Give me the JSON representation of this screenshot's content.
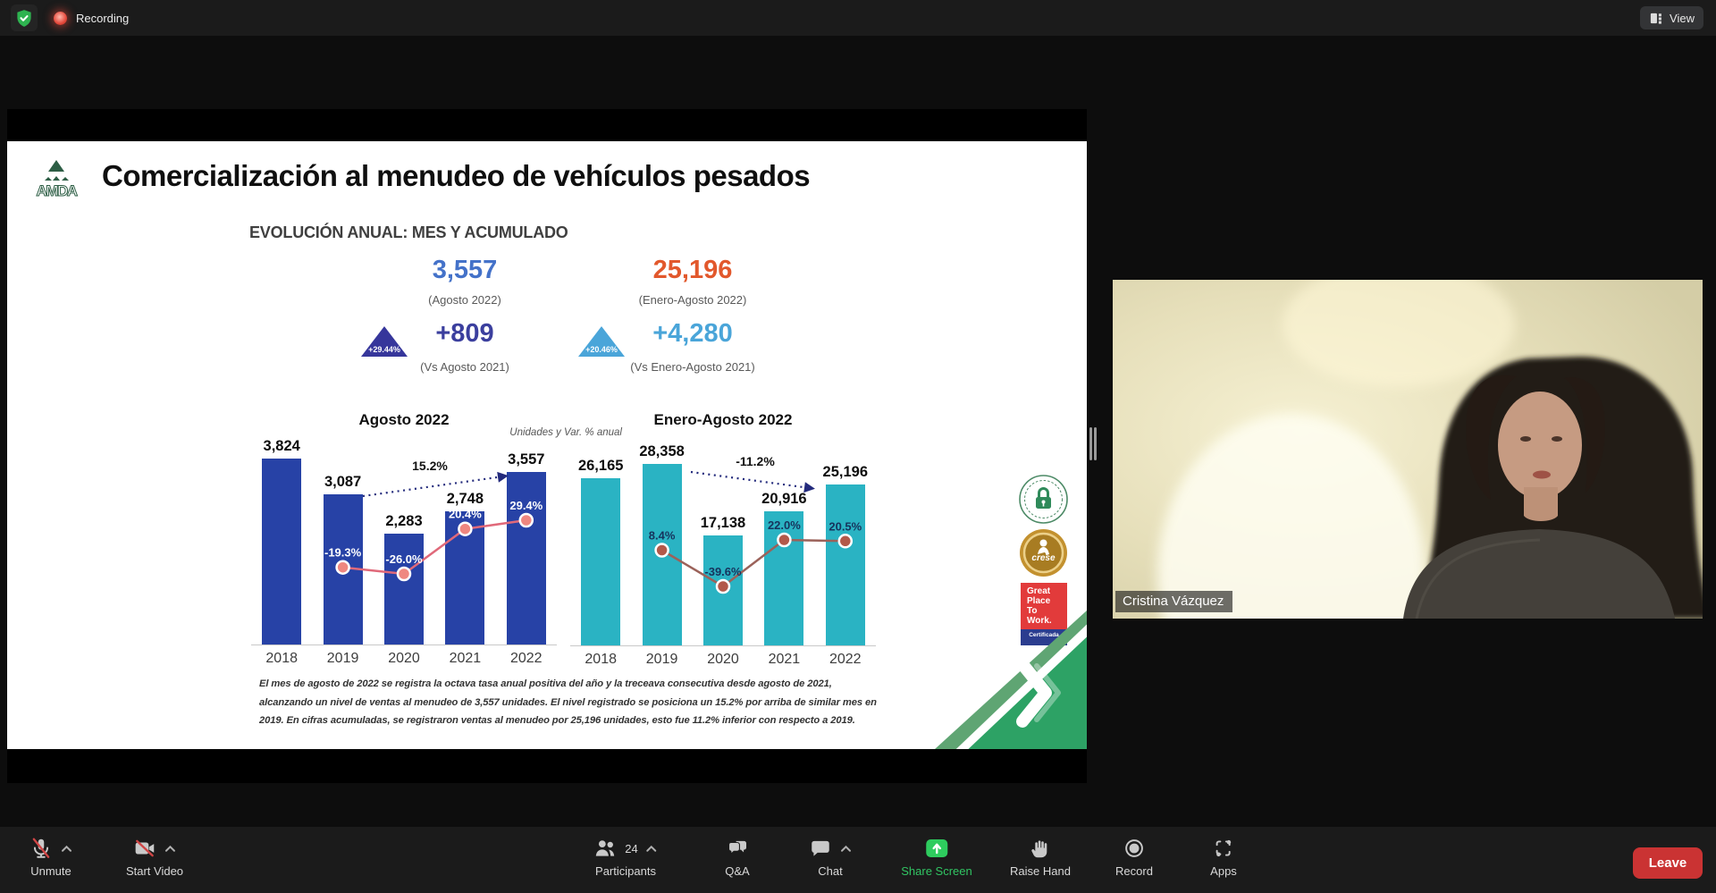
{
  "topbar": {
    "recording_label": "Recording",
    "view_label": "View"
  },
  "slide": {
    "logo_text": "AMDA",
    "title": "Comercialización al menudeo de vehículos pesados",
    "section_title": "EVOLUCIÓN ANUAL: MES Y ACUMULADO",
    "kpis": {
      "month_value": "3,557",
      "month_caption": "(Agosto 2022)",
      "month_delta": "+809",
      "month_delta_caption": "(Vs Agosto 2021)",
      "month_delta_pct": "+29.44%",
      "accum_value": "25,196",
      "accum_caption": "(Enero-Agosto 2022)",
      "accum_delta": "+4,280",
      "accum_delta_caption": "(Vs Enero-Agosto 2021)",
      "accum_delta_pct": "+20.46%"
    },
    "units_note": "Unidades y Var. % anual",
    "footnote": "El mes de agosto de 2022 se registra la octava tasa anual positiva del año y la treceava consecutiva desde agosto de 2021, alcanzando un nivel de ventas al menudeo de 3,557 unidades. El nivel registrado se posiciona un 15.2% por arriba de similar mes en 2019. En cifras acumuladas, se registraron ventas al menudeo por 25,196 unidades, esto fue 11.2% inferior con respecto a 2019.",
    "badges": {
      "gptw_lines": [
        "Great",
        "Place",
        "To",
        "Work."
      ],
      "gptw_cert": "Certificada",
      "crese": "crese"
    }
  },
  "chart_data": [
    {
      "type": "bar",
      "title": "Agosto 2022",
      "categories": [
        "2018",
        "2019",
        "2020",
        "2021",
        "2022"
      ],
      "series": [
        {
          "name": "Unidades",
          "type": "bar",
          "values": [
            3824,
            3087,
            2283,
            2748,
            3557
          ]
        },
        {
          "name": "Var. % anual",
          "type": "line",
          "values": [
            null,
            -19.3,
            -26.0,
            20.4,
            29.4
          ]
        }
      ],
      "value_labels": [
        "3,824",
        "3,087",
        "2,283",
        "2,748",
        "3,557"
      ],
      "pct_labels": [
        null,
        "-19.3%",
        "-26.0%",
        "20.4%",
        "29.4%"
      ],
      "annotation": {
        "label": "15.2%",
        "from": "2019",
        "to": "2022"
      },
      "ylim": [
        0,
        4200
      ],
      "legend": "none",
      "bar_color": "#2742a6",
      "line_color": "#e0697a",
      "marker_color": "#ef8780",
      "pct_label_color": "#ffffff",
      "arrow_color": "#232a7c"
    },
    {
      "type": "bar",
      "title": "Enero-Agosto 2022",
      "categories": [
        "2018",
        "2019",
        "2020",
        "2021",
        "2022"
      ],
      "series": [
        {
          "name": "Unidades",
          "type": "bar",
          "values": [
            26165,
            28358,
            17138,
            20916,
            25196
          ]
        },
        {
          "name": "Var. % anual",
          "type": "line",
          "values": [
            null,
            8.4,
            -39.6,
            22.0,
            20.5
          ]
        }
      ],
      "value_labels": [
        "26,165",
        "28,358",
        "17,138",
        "20,916",
        "25,196"
      ],
      "pct_labels": [
        null,
        "8.4%",
        "-39.6%",
        "22.0%",
        "20.5%"
      ],
      "annotation": {
        "label": "-11.2%",
        "from": "2019",
        "to": "2022"
      },
      "ylim": [
        0,
        31000
      ],
      "legend": "none",
      "bar_color": "#2ab3c3",
      "line_color": "#9b625a",
      "marker_color": "#b2594a",
      "pct_label_color": "#16335c",
      "arrow_color": "#232a7c"
    }
  ],
  "video": {
    "participant_name": "Cristina Vázquez"
  },
  "toolbar": {
    "unmute": "Unmute",
    "start_video": "Start Video",
    "participants": "Participants",
    "participants_count": "24",
    "qa": "Q&A",
    "chat": "Chat",
    "share_screen": "Share Screen",
    "raise_hand": "Raise Hand",
    "record": "Record",
    "apps": "Apps",
    "leave": "Leave"
  },
  "colors": {
    "kpi_month": "#4472c9",
    "kpi_accum": "#e2582c",
    "kpi_month_delta": "#3b3f9e",
    "kpi_accum_delta": "#4aa5d9",
    "share_green": "#2ecc5e",
    "leave_red": "#ca3333",
    "bar_month": "#2742a6",
    "bar_accum": "#2ab3c3"
  }
}
